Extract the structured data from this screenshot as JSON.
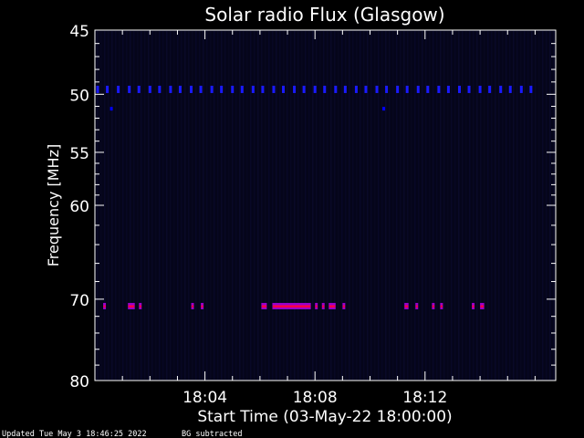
{
  "chart_data": {
    "type": "heatmap",
    "title": "Solar radio Flux (Glasgow)",
    "xlabel": "Start Time (03-May-22 18:00:00)",
    "ylabel": "Frequency [MHz]",
    "x_unit": "minutes after 18:00:00",
    "xlim": [
      0,
      16.75
    ],
    "ylim": [
      45,
      80
    ],
    "x_ticks": [
      {
        "value": 4,
        "label": "18:04"
      },
      {
        "value": 8,
        "label": "18:08"
      },
      {
        "value": 12,
        "label": "18:12"
      }
    ],
    "y_ticks": [
      {
        "value": 45,
        "label": "45"
      },
      {
        "value": 50,
        "label": "50"
      },
      {
        "value": 55,
        "label": "55"
      },
      {
        "value": 60,
        "label": "60"
      },
      {
        "value": 70,
        "label": "70"
      },
      {
        "value": 80,
        "label": "80"
      }
    ],
    "grid": false,
    "background_color": "#000000",
    "plot_color": "#05051a",
    "colors": {
      "low": "#0000ff",
      "band": "#1a1aff",
      "mid": "#9900cc",
      "high": "#ff0044"
    },
    "band_frequency": 49.6,
    "band_x": [
      0.1,
      0.45,
      0.85,
      1.25,
      1.6,
      2.0,
      2.35,
      2.75,
      3.1,
      3.5,
      3.85,
      4.25,
      4.6,
      5.0,
      5.35,
      5.75,
      6.1,
      6.5,
      6.85,
      7.25,
      7.6,
      8.0,
      8.35,
      8.75,
      9.1,
      9.5,
      9.85,
      10.25,
      10.6,
      11.0,
      11.35,
      11.75,
      12.1,
      12.5,
      12.85,
      13.25,
      13.6,
      14.0,
      14.35,
      14.75,
      15.1,
      15.5,
      15.85
    ],
    "points": [
      {
        "x": 0.6,
        "freq": 51.2,
        "intensity": "low"
      },
      {
        "x": 10.5,
        "freq": 51.2,
        "intensity": "low"
      }
    ],
    "events_70MHz": [
      {
        "start": 0.3,
        "end": 0.4
      },
      {
        "start": 1.2,
        "end": 1.45
      },
      {
        "start": 1.6,
        "end": 1.7
      },
      {
        "start": 3.5,
        "end": 3.6
      },
      {
        "start": 3.85,
        "end": 3.95
      },
      {
        "start": 6.05,
        "end": 6.25
      },
      {
        "start": 6.45,
        "end": 7.85
      },
      {
        "start": 8.0,
        "end": 8.1
      },
      {
        "start": 8.25,
        "end": 8.35
      },
      {
        "start": 8.5,
        "end": 8.75
      },
      {
        "start": 9.0,
        "end": 9.1
      },
      {
        "start": 11.25,
        "end": 11.4
      },
      {
        "start": 11.65,
        "end": 11.75
      },
      {
        "start": 12.25,
        "end": 12.35
      },
      {
        "start": 12.55,
        "end": 12.65
      },
      {
        "start": 13.7,
        "end": 13.8
      },
      {
        "start": 14.0,
        "end": 14.15
      }
    ],
    "event_frequency": 70.8
  },
  "footer": {
    "updated": "Updated Tue May  3 18:46:25 2022",
    "note": "BG subtracted"
  }
}
